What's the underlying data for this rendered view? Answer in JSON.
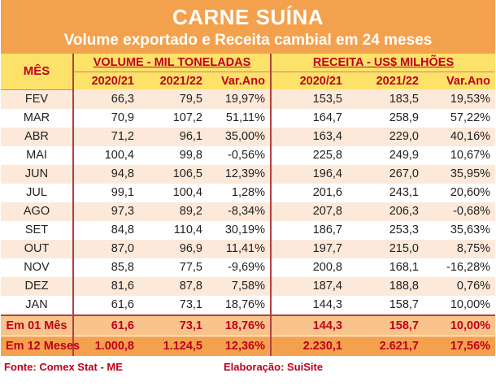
{
  "title": "CARNE SUÍNA",
  "subtitle": "Volume exportado e Receita cambial em 24 meses",
  "header": {
    "month_col": "MÊS",
    "volume_group": "VOLUME - MIL TONELADAS",
    "revenue_group": "RECEITA - US$ MILHÕES",
    "col_y1": "2020/21",
    "col_y2": "2021/22",
    "col_var": "Var.Ano"
  },
  "rows": [
    {
      "m": "FEV",
      "v1": "66,3",
      "v2": "79,5",
      "vv": "19,97%",
      "r1": "153,5",
      "r2": "183,5",
      "rv": "19,53%"
    },
    {
      "m": "MAR",
      "v1": "70,9",
      "v2": "107,2",
      "vv": "51,11%",
      "r1": "164,7",
      "r2": "258,9",
      "rv": "57,22%"
    },
    {
      "m": "ABR",
      "v1": "71,2",
      "v2": "96,1",
      "vv": "35,00%",
      "r1": "163,4",
      "r2": "229,0",
      "rv": "40,16%"
    },
    {
      "m": "MAI",
      "v1": "100,4",
      "v2": "99,8",
      "vv": "-0,56%",
      "r1": "225,8",
      "r2": "249,9",
      "rv": "10,67%"
    },
    {
      "m": "JUN",
      "v1": "94,8",
      "v2": "106,5",
      "vv": "12,39%",
      "r1": "196,4",
      "r2": "267,0",
      "rv": "35,95%"
    },
    {
      "m": "JUL",
      "v1": "99,1",
      "v2": "100,4",
      "vv": "1,28%",
      "r1": "201,6",
      "r2": "243,1",
      "rv": "20,60%"
    },
    {
      "m": "AGO",
      "v1": "97,3",
      "v2": "89,2",
      "vv": "-8,34%",
      "r1": "207,8",
      "r2": "206,3",
      "rv": "-0,68%"
    },
    {
      "m": "SET",
      "v1": "84,8",
      "v2": "110,4",
      "vv": "30,19%",
      "r1": "186,7",
      "r2": "253,3",
      "rv": "35,63%"
    },
    {
      "m": "OUT",
      "v1": "87,0",
      "v2": "96,9",
      "vv": "11,41%",
      "r1": "197,7",
      "r2": "215,0",
      "rv": "8,75%"
    },
    {
      "m": "NOV",
      "v1": "85,8",
      "v2": "77,5",
      "vv": "-9,69%",
      "r1": "200,8",
      "r2": "168,1",
      "rv": "-16,28%"
    },
    {
      "m": "DEZ",
      "v1": "81,6",
      "v2": "87,8",
      "vv": "7,58%",
      "r1": "187,4",
      "r2": "188,8",
      "rv": "0,76%"
    },
    {
      "m": "JAN",
      "v1": "61,6",
      "v2": "73,1",
      "vv": "18,76%",
      "r1": "144,3",
      "r2": "158,7",
      "rv": "10,00%"
    }
  ],
  "summary": [
    {
      "m": "Em 01 Mês",
      "v1": "61,6",
      "v2": "73,1",
      "vv": "18,76%",
      "r1": "144,3",
      "r2": "158,7",
      "rv": "10,00%"
    },
    {
      "m": "Em 12 Meses",
      "v1": "1.000,8",
      "v2": "1.124,5",
      "vv": "12,36%",
      "r1": "2.230,1",
      "r2": "2.621,7",
      "rv": "17,56%"
    }
  ],
  "footer": {
    "source": "Fonte: Comex Stat - ME",
    "credit": "Elaboração: SuiSite"
  },
  "colors": {
    "header_orange": "#f4a14e",
    "header_yellow": "#fde26a",
    "label_red": "#c0001a",
    "stripe": "#fde9d9"
  }
}
